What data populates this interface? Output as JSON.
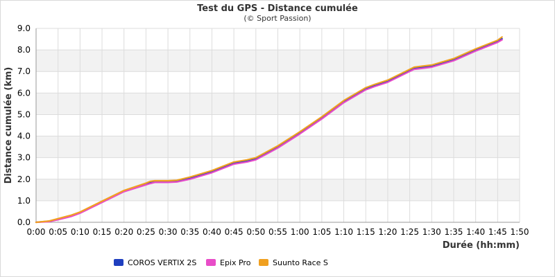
{
  "chart_data": {
    "type": "line",
    "title": "Test du GPS - Distance cumulée",
    "subtitle": "(© Sport Passion)",
    "xlabel": "Durée (hh:mm)",
    "ylabel": "Distance cumulée (km)",
    "xlim": [
      0,
      110
    ],
    "ylim": [
      0,
      9
    ],
    "grid": true,
    "legend_position": "bottom",
    "x_ticks": [
      "0:00",
      "0:05",
      "0:10",
      "0:15",
      "0:20",
      "0:25",
      "0:30",
      "0:35",
      "0:40",
      "0:45",
      "0:50",
      "0:55",
      "1:00",
      "1:05",
      "1:10",
      "1:15",
      "1:20",
      "1:25",
      "1:30",
      "1:35",
      "1:40",
      "1:45",
      "1:50"
    ],
    "y_ticks": [
      "0.0",
      "1.0",
      "2.0",
      "3.0",
      "4.0",
      "5.0",
      "6.0",
      "7.0",
      "8.0",
      "9.0"
    ],
    "x_unit": "minutes",
    "x": [
      0,
      3,
      5,
      7,
      8,
      10,
      15,
      20,
      25,
      26,
      27,
      30,
      32,
      35,
      40,
      45,
      48,
      50,
      55,
      60,
      65,
      70,
      75,
      77,
      80,
      85,
      86,
      88,
      90,
      95,
      100,
      105,
      106
    ],
    "series": [
      {
        "name": "COROS VERTIX 2S",
        "color": "#1f3fbf",
        "values": [
          0,
          0.05,
          0.15,
          0.25,
          0.3,
          0.45,
          0.95,
          1.45,
          1.78,
          1.85,
          1.88,
          1.88,
          1.9,
          2.05,
          2.35,
          2.75,
          2.85,
          2.95,
          3.5,
          4.15,
          4.85,
          5.6,
          6.2,
          6.35,
          6.55,
          7.05,
          7.15,
          7.2,
          7.25,
          7.55,
          8.0,
          8.4,
          8.52
        ]
      },
      {
        "name": "Epix Pro",
        "color": "#e84dc8",
        "values": [
          0,
          0.03,
          0.12,
          0.22,
          0.27,
          0.42,
          0.92,
          1.42,
          1.74,
          1.8,
          1.85,
          1.85,
          1.87,
          2.0,
          2.3,
          2.7,
          2.8,
          2.9,
          3.45,
          4.1,
          4.8,
          5.55,
          6.15,
          6.3,
          6.5,
          7.0,
          7.1,
          7.15,
          7.2,
          7.5,
          7.95,
          8.35,
          8.47
        ]
      },
      {
        "name": "Suunto Race S",
        "color": "#f0a020",
        "values": [
          0,
          0.06,
          0.17,
          0.28,
          0.33,
          0.48,
          0.98,
          1.48,
          1.82,
          1.9,
          1.93,
          1.93,
          1.95,
          2.1,
          2.4,
          2.8,
          2.9,
          3.0,
          3.55,
          4.2,
          4.9,
          5.65,
          6.25,
          6.4,
          6.6,
          7.1,
          7.2,
          7.25,
          7.3,
          7.6,
          8.05,
          8.45,
          8.6
        ]
      }
    ]
  }
}
